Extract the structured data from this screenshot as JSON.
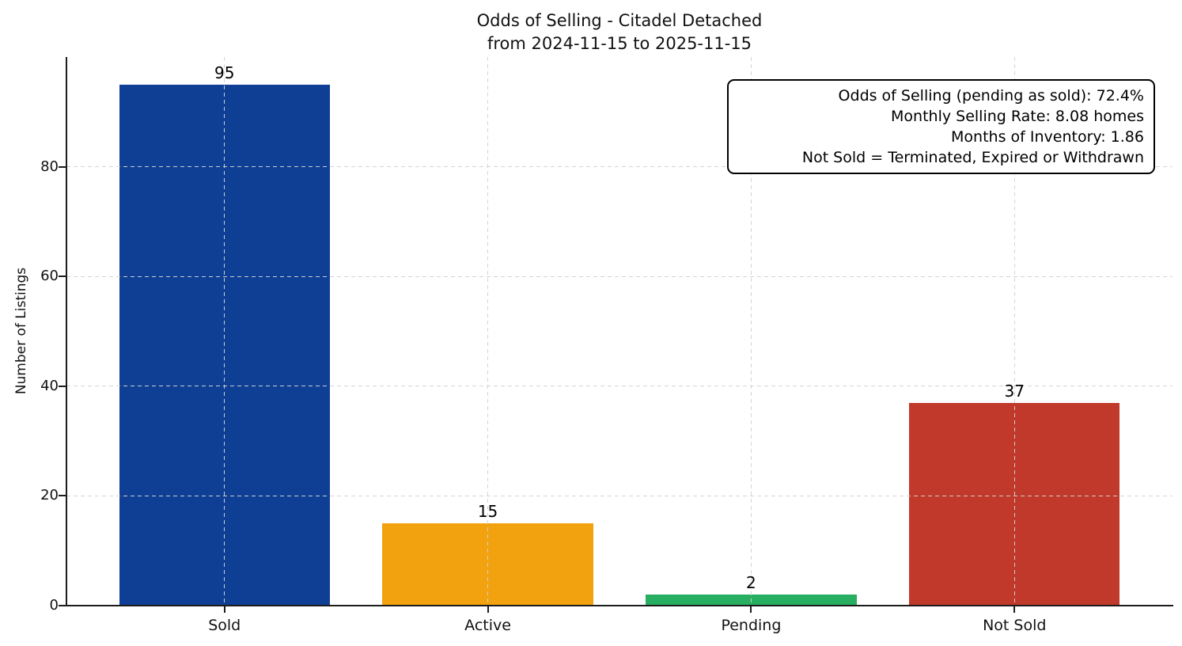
{
  "chart_data": {
    "type": "bar",
    "title": "Odds of Selling - Citadel Detached\nfrom 2024-11-15 to 2025-11-15",
    "title_lines": [
      "Odds of Selling - Citadel Detached",
      "from 2024-11-15 to 2025-11-15"
    ],
    "categories": [
      "Sold",
      "Active",
      "Pending",
      "Not Sold"
    ],
    "values": [
      95,
      15,
      2,
      37
    ],
    "bar_value_labels": [
      "95",
      "15",
      "2",
      "37"
    ],
    "bar_colors": [
      "#0e3f94",
      "#f2a20e",
      "#27ae60",
      "#c0392b"
    ],
    "xlabel": "",
    "ylabel": "Number of Listings",
    "ylim": [
      0,
      100
    ],
    "yticks": [
      0,
      20,
      40,
      60,
      80
    ],
    "grid": {
      "axis": "both",
      "style": "dashed",
      "color": "#d3d3d3",
      "above_bars": true
    },
    "legend": null,
    "annotation": {
      "position": "top-right",
      "border_color": "#000000",
      "background": "#ffffff",
      "lines": [
        "Odds of Selling (pending as sold): 72.4%",
        "Monthly Selling Rate: 8.08 homes",
        "Months of Inventory: 1.86",
        "Not Sold = Terminated, Expired or Withdrawn"
      ]
    }
  }
}
